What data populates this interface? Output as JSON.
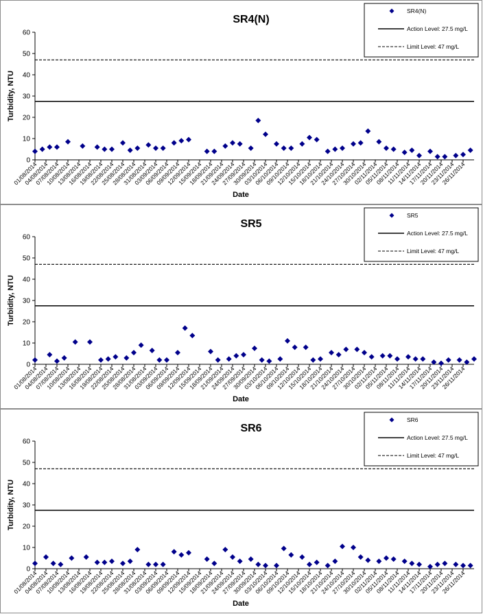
{
  "chart_data": [
    {
      "type": "scatter",
      "title": "SR4(N)",
      "xlabel": "Date",
      "ylabel": "Turbidity, NTU",
      "ylim": [
        0,
        60
      ],
      "yticks": [
        0,
        10,
        20,
        30,
        40,
        50,
        60
      ],
      "xticks": [
        "01/08/2014",
        "04/08/2014",
        "07/08/2014",
        "10/08/2014",
        "13/08/2014",
        "16/08/2014",
        "19/08/2014",
        "22/08/2014",
        "25/08/2014",
        "28/08/2014",
        "31/08/2014",
        "03/09/2014",
        "06/09/2014",
        "09/09/2014",
        "12/09/2014",
        "15/09/2014",
        "18/09/2014",
        "21/09/2014",
        "24/09/2014",
        "27/09/2014",
        "30/09/2014",
        "03/10/2014",
        "06/10/2014",
        "09/10/2014",
        "12/10/2014",
        "15/10/2014",
        "18/10/2014",
        "21/10/2014",
        "24/10/2014",
        "27/10/2014",
        "30/10/2014",
        "02/11/2014",
        "05/11/2014",
        "08/11/2014",
        "11/11/2014",
        "14/11/2014",
        "17/11/2014",
        "20/11/2014",
        "23/11/2014",
        "26/11/2014"
      ],
      "legend": [
        "SR4(N)",
        "Action Level: 27.5 mg/L",
        "Limit Level: 47 mg/L"
      ],
      "legend_position": "top-right",
      "action_level": 27.5,
      "limit_level": 47,
      "marker_color": "#00008b",
      "series": [
        {
          "name": "SR4(N)",
          "points": [
            [
              "01/08/2014",
              4
            ],
            [
              "03/08/2014",
              5
            ],
            [
              "05/08/2014",
              6
            ],
            [
              "07/08/2014",
              6
            ],
            [
              "10/08/2014",
              8.5
            ],
            [
              "14/08/2014",
              6.5
            ],
            [
              "18/08/2014",
              6
            ],
            [
              "20/08/2014",
              5
            ],
            [
              "22/08/2014",
              5
            ],
            [
              "25/08/2014",
              8
            ],
            [
              "27/08/2014",
              4.5
            ],
            [
              "29/08/2014",
              5.5
            ],
            [
              "01/09/2014",
              7
            ],
            [
              "03/09/2014",
              5.5
            ],
            [
              "05/09/2014",
              5.5
            ],
            [
              "08/09/2014",
              8
            ],
            [
              "10/09/2014",
              9
            ],
            [
              "12/09/2014",
              9.5
            ],
            [
              "17/09/2014",
              4
            ],
            [
              "19/09/2014",
              4
            ],
            [
              "22/09/2014",
              6.5
            ],
            [
              "24/09/2014",
              8
            ],
            [
              "26/09/2014",
              7.5
            ],
            [
              "29/09/2014",
              5.5
            ],
            [
              "01/10/2014",
              18.5
            ],
            [
              "03/10/2014",
              12
            ],
            [
              "06/10/2014",
              7.5
            ],
            [
              "08/10/2014",
              5.5
            ],
            [
              "10/10/2014",
              5.5
            ],
            [
              "13/10/2014",
              7.5
            ],
            [
              "15/10/2014",
              10.5
            ],
            [
              "17/10/2014",
              9.5
            ],
            [
              "20/10/2014",
              4
            ],
            [
              "22/10/2014",
              5
            ],
            [
              "24/10/2014",
              5.5
            ],
            [
              "27/10/2014",
              7.5
            ],
            [
              "29/10/2014",
              8
            ],
            [
              "31/10/2014",
              13.5
            ],
            [
              "03/11/2014",
              8.5
            ],
            [
              "05/11/2014",
              5.5
            ],
            [
              "07/11/2014",
              5
            ],
            [
              "10/11/2014",
              3.5
            ],
            [
              "12/11/2014",
              4.5
            ],
            [
              "14/11/2014",
              2
            ],
            [
              "17/11/2014",
              4
            ],
            [
              "19/11/2014",
              1.5
            ],
            [
              "21/11/2014",
              1.5
            ],
            [
              "24/11/2014",
              2
            ],
            [
              "26/11/2014",
              2.5
            ],
            [
              "28/11/2014",
              4.5
            ]
          ]
        }
      ]
    },
    {
      "type": "scatter",
      "title": "SR5",
      "xlabel": "Date",
      "ylabel": "Turbidity, NTU",
      "ylim": [
        0,
        60
      ],
      "yticks": [
        0,
        10,
        20,
        30,
        40,
        50,
        60
      ],
      "xticks": [
        "01/08/2014",
        "04/08/2014",
        "07/08/2014",
        "10/08/2014",
        "13/08/2014",
        "16/08/2014",
        "19/08/2014",
        "22/08/2014",
        "25/08/2014",
        "28/08/2014",
        "31/08/2014",
        "03/09/2014",
        "06/09/2014",
        "09/09/2014",
        "12/09/2014",
        "15/09/2014",
        "18/09/2014",
        "21/09/2014",
        "24/09/2014",
        "27/09/2014",
        "30/09/2014",
        "03/10/2014",
        "06/10/2014",
        "09/10/2014",
        "12/10/2014",
        "15/10/2014",
        "18/10/2014",
        "21/10/2014",
        "24/10/2014",
        "27/10/2014",
        "30/10/2014",
        "02/11/2014",
        "05/11/2014",
        "08/11/2014",
        "11/11/2014",
        "14/11/2014",
        "17/11/2014",
        "20/11/2014",
        "23/11/2014",
        "26/11/2014"
      ],
      "legend": [
        "SR5",
        "Action Level: 27.5 mg/L",
        "Limit Level: 47 mg/L"
      ],
      "legend_position": "top-right",
      "action_level": 27.5,
      "limit_level": 47,
      "marker_color": "#00008b",
      "series": [
        {
          "name": "SR5",
          "points": [
            [
              "01/08/2014",
              2
            ],
            [
              "05/08/2014",
              4.5
            ],
            [
              "07/08/2014",
              1.5
            ],
            [
              "09/08/2014",
              3
            ],
            [
              "12/08/2014",
              10.5
            ],
            [
              "16/08/2014",
              10.5
            ],
            [
              "19/08/2014",
              2
            ],
            [
              "21/08/2014",
              2.5
            ],
            [
              "23/08/2014",
              3.5
            ],
            [
              "26/08/2014",
              3
            ],
            [
              "28/08/2014",
              5.5
            ],
            [
              "30/08/2014",
              9
            ],
            [
              "02/09/2014",
              6.5
            ],
            [
              "04/09/2014",
              2
            ],
            [
              "06/09/2014",
              2
            ],
            [
              "09/09/2014",
              5.5
            ],
            [
              "11/09/2014",
              17
            ],
            [
              "13/09/2014",
              13.5
            ],
            [
              "18/09/2014",
              6
            ],
            [
              "20/09/2014",
              2
            ],
            [
              "23/09/2014",
              2.5
            ],
            [
              "25/09/2014",
              4
            ],
            [
              "27/09/2014",
              4.5
            ],
            [
              "30/09/2014",
              7.5
            ],
            [
              "02/10/2014",
              2
            ],
            [
              "04/10/2014",
              1.5
            ],
            [
              "07/10/2014",
              2.5
            ],
            [
              "09/10/2014",
              11
            ],
            [
              "11/10/2014",
              8
            ],
            [
              "14/10/2014",
              8
            ],
            [
              "16/10/2014",
              2
            ],
            [
              "18/10/2014",
              2.5
            ],
            [
              "21/10/2014",
              5.5
            ],
            [
              "23/10/2014",
              4.5
            ],
            [
              "25/10/2014",
              7
            ],
            [
              "28/10/2014",
              7
            ],
            [
              "30/10/2014",
              5.5
            ],
            [
              "01/11/2014",
              3.5
            ],
            [
              "04/11/2014",
              4
            ],
            [
              "06/11/2014",
              4
            ],
            [
              "08/11/2014",
              2.5
            ],
            [
              "11/11/2014",
              3.5
            ],
            [
              "13/11/2014",
              2.5
            ],
            [
              "15/11/2014",
              2.5
            ],
            [
              "18/11/2014",
              1
            ],
            [
              "20/11/2014",
              0.5
            ],
            [
              "22/11/2014",
              2
            ],
            [
              "25/11/2014",
              2
            ],
            [
              "27/11/2014",
              1
            ],
            [
              "29/11/2014",
              2.5
            ]
          ]
        }
      ]
    },
    {
      "type": "scatter",
      "title": "SR6",
      "xlabel": "Date",
      "ylabel": "Turbidity, NTU",
      "ylim": [
        0,
        60
      ],
      "yticks": [
        0,
        10,
        20,
        30,
        40,
        50,
        60
      ],
      "xticks": [
        "01/08/2014",
        "04/08/2014",
        "07/08/2014",
        "10/08/2014",
        "13/08/2014",
        "16/08/2014",
        "19/08/2014",
        "22/08/2014",
        "25/08/2014",
        "28/08/2014",
        "31/08/2014",
        "03/09/2014",
        "06/09/2014",
        "09/09/2014",
        "12/09/2014",
        "15/09/2014",
        "18/09/2014",
        "21/09/2014",
        "24/09/2014",
        "27/09/2014",
        "30/09/2014",
        "03/10/2014",
        "06/10/2014",
        "09/10/2014",
        "12/10/2014",
        "15/10/2014",
        "18/10/2014",
        "21/10/2014",
        "24/10/2014",
        "27/10/2014",
        "30/10/2014",
        "02/11/2014",
        "05/11/2014",
        "08/11/2014",
        "11/11/2014",
        "14/11/2014",
        "17/11/2014",
        "20/11/2014",
        "23/11/2014",
        "26/11/2014"
      ],
      "legend": [
        "SR6",
        "Action Level: 27.5 mg/L",
        "Limit Level: 47 mg/L"
      ],
      "legend_position": "top-right",
      "action_level": 27.5,
      "limit_level": 47,
      "marker_color": "#00008b",
      "series": [
        {
          "name": "SR6",
          "points": [
            [
              "01/08/2014",
              2.5
            ],
            [
              "04/08/2014",
              5.5
            ],
            [
              "06/08/2014",
              2.5
            ],
            [
              "08/08/2014",
              2
            ],
            [
              "11/08/2014",
              5
            ],
            [
              "15/08/2014",
              5.5
            ],
            [
              "18/08/2014",
              3
            ],
            [
              "20/08/2014",
              3
            ],
            [
              "22/08/2014",
              3.5
            ],
            [
              "25/08/2014",
              2.5
            ],
            [
              "27/08/2014",
              3.5
            ],
            [
              "29/08/2014",
              9
            ],
            [
              "01/09/2014",
              2
            ],
            [
              "03/09/2014",
              2
            ],
            [
              "05/09/2014",
              2
            ],
            [
              "08/09/2014",
              8
            ],
            [
              "10/09/2014",
              6.5
            ],
            [
              "12/09/2014",
              7.5
            ],
            [
              "17/09/2014",
              4.5
            ],
            [
              "19/09/2014",
              2.5
            ],
            [
              "22/09/2014",
              9
            ],
            [
              "24/09/2014",
              5.5
            ],
            [
              "26/09/2014",
              3.5
            ],
            [
              "29/09/2014",
              4.5
            ],
            [
              "01/10/2014",
              2
            ],
            [
              "03/10/2014",
              1.5
            ],
            [
              "06/10/2014",
              1.5
            ],
            [
              "08/10/2014",
              9.5
            ],
            [
              "10/10/2014",
              6.5
            ],
            [
              "13/10/2014",
              5.5
            ],
            [
              "15/10/2014",
              2
            ],
            [
              "17/10/2014",
              3
            ],
            [
              "20/10/2014",
              1.5
            ],
            [
              "22/10/2014",
              3.5
            ],
            [
              "24/10/2014",
              10.5
            ],
            [
              "27/10/2014",
              10
            ],
            [
              "29/10/2014",
              5.5
            ],
            [
              "31/10/2014",
              4
            ],
            [
              "03/11/2014",
              3.5
            ],
            [
              "05/11/2014",
              5
            ],
            [
              "07/11/2014",
              4.5
            ],
            [
              "10/11/2014",
              3.5
            ],
            [
              "12/11/2014",
              2.5
            ],
            [
              "14/11/2014",
              2
            ],
            [
              "17/11/2014",
              1
            ],
            [
              "19/11/2014",
              2
            ],
            [
              "21/11/2014",
              2.5
            ],
            [
              "24/11/2014",
              2
            ],
            [
              "26/11/2014",
              1.5
            ],
            [
              "28/11/2014",
              1.5
            ]
          ]
        }
      ]
    }
  ]
}
